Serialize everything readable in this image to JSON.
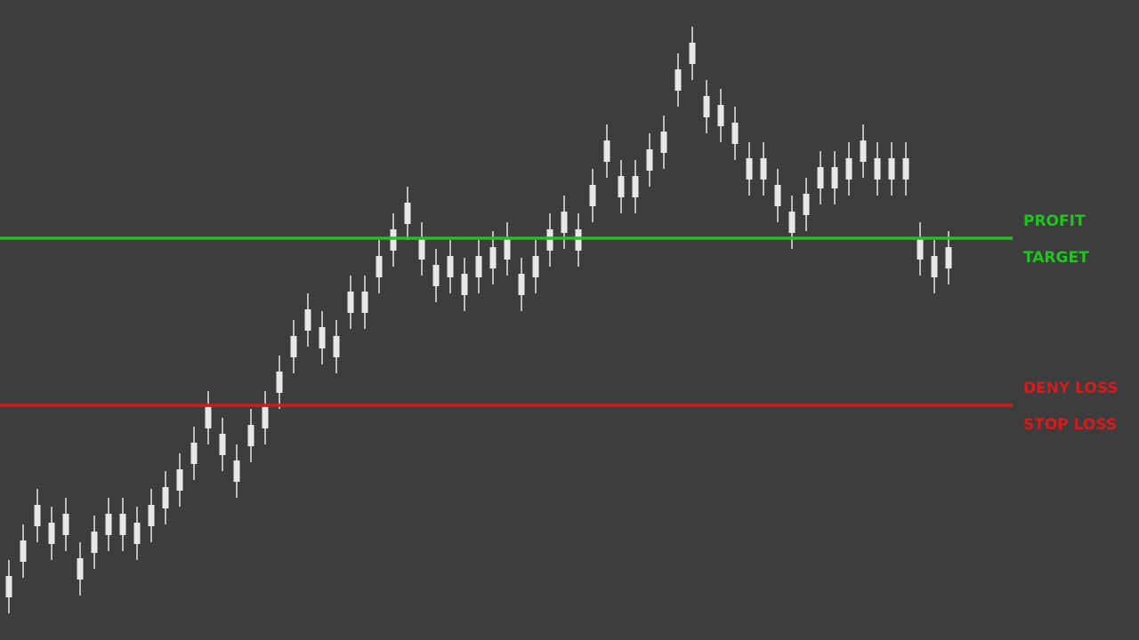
{
  "chart_data": {
    "type": "candlestick",
    "ylim": [
      0,
      720
    ],
    "candle_color": "#e8e8e8",
    "background": "#3d3d3d",
    "open": [
      48,
      88,
      128,
      132,
      118,
      92,
      98,
      118,
      142,
      132,
      128,
      148,
      168,
      198,
      238,
      232,
      202,
      218,
      238,
      278,
      318,
      348,
      352,
      342,
      368,
      392,
      408,
      438,
      468,
      452,
      422,
      408,
      412,
      408,
      418,
      428,
      412,
      408,
      438,
      458,
      462,
      488,
      538,
      522,
      522,
      528,
      548,
      618,
      648,
      612,
      602,
      582,
      542,
      542,
      512,
      482,
      478,
      508,
      532,
      518,
      538,
      542,
      542,
      542,
      452,
      432,
      418
    ],
    "close": [
      72,
      112,
      152,
      108,
      142,
      68,
      122,
      142,
      118,
      108,
      152,
      172,
      192,
      222,
      262,
      208,
      178,
      242,
      262,
      302,
      342,
      372,
      328,
      318,
      392,
      368,
      432,
      462,
      492,
      428,
      398,
      432,
      388,
      432,
      442,
      452,
      388,
      432,
      462,
      482,
      438,
      512,
      562,
      498,
      498,
      552,
      572,
      642,
      672,
      588,
      578,
      558,
      518,
      518,
      488,
      458,
      502,
      532,
      508,
      542,
      562,
      518,
      518,
      518,
      428,
      408,
      442
    ],
    "high": [
      90,
      130,
      170,
      150,
      160,
      110,
      140,
      160,
      160,
      150,
      170,
      190,
      210,
      240,
      280,
      250,
      220,
      260,
      280,
      320,
      360,
      390,
      370,
      360,
      410,
      410,
      450,
      480,
      510,
      470,
      440,
      450,
      430,
      450,
      460,
      470,
      430,
      450,
      480,
      500,
      480,
      530,
      580,
      540,
      540,
      570,
      590,
      660,
      690,
      630,
      620,
      600,
      560,
      560,
      530,
      500,
      520,
      550,
      550,
      560,
      580,
      560,
      560,
      560,
      470,
      450,
      460
    ],
    "low": [
      30,
      70,
      110,
      90,
      100,
      50,
      80,
      100,
      100,
      90,
      110,
      130,
      150,
      180,
      220,
      190,
      160,
      200,
      220,
      260,
      300,
      330,
      310,
      300,
      350,
      350,
      390,
      420,
      450,
      410,
      380,
      390,
      370,
      390,
      400,
      410,
      370,
      390,
      420,
      440,
      420,
      470,
      520,
      480,
      480,
      510,
      530,
      600,
      630,
      570,
      560,
      540,
      500,
      500,
      470,
      440,
      460,
      490,
      490,
      500,
      520,
      500,
      500,
      500,
      410,
      390,
      400
    ],
    "levels": [
      {
        "value": 452,
        "color": "#1fc41f",
        "labels": [
          "PROFIT",
          "TARGET"
        ]
      },
      {
        "value": 264,
        "color": "#d41c1c",
        "labels": [
          "DENY LOSS",
          "STOP LOSS"
        ]
      }
    ]
  }
}
